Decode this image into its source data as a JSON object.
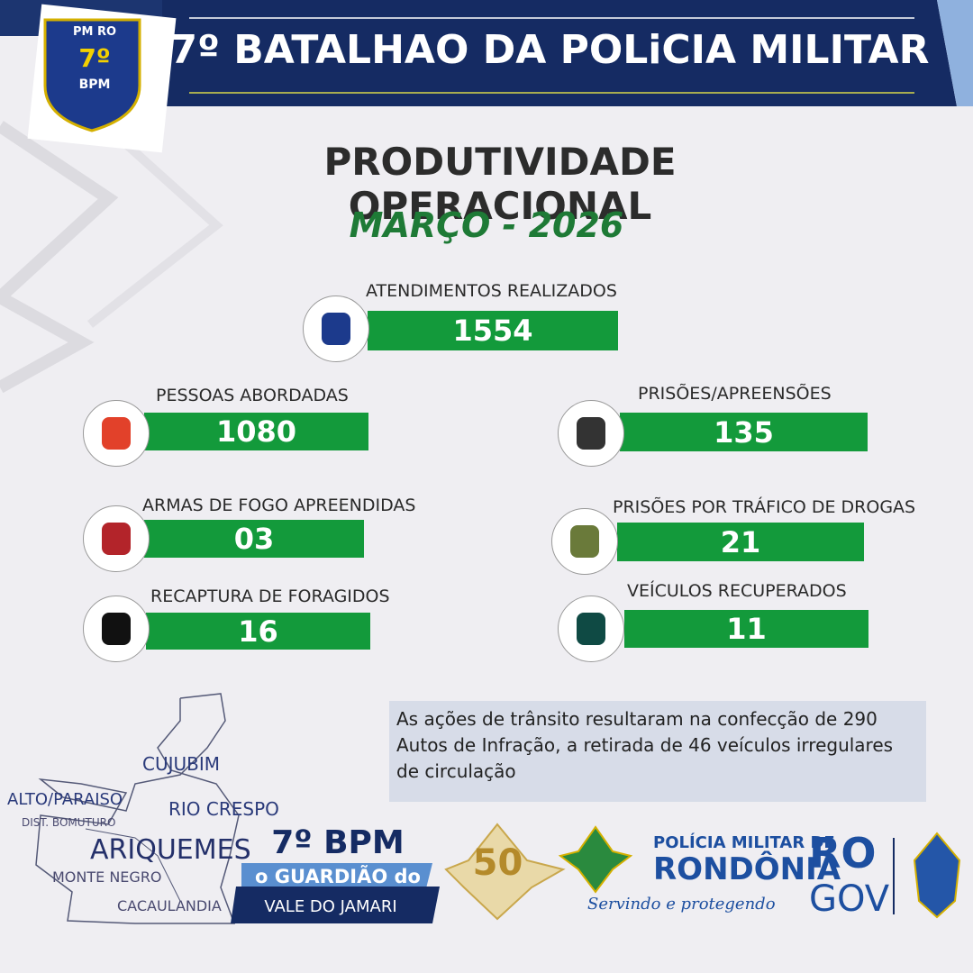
{
  "header": {
    "title": "7º BATALHAO DA POLiCIA MILITAR",
    "badge_top": "PM RO",
    "badge_number": "7º",
    "badge_bottom": "BPM"
  },
  "subtitle": "PRODUTIVIDADE OPERACIONAL",
  "period": "MARÇO - 2026",
  "stats": [
    {
      "label": "ATENDIMENTOS REALIZADOS",
      "value": "1554"
    },
    {
      "label": "PESSOAS ABORDADAS",
      "value": "1080"
    },
    {
      "label": "PRISÕES/APREENSÕES",
      "value": "135"
    },
    {
      "label": "ARMAS DE FOGO APREENDIDAS",
      "value": "03"
    },
    {
      "label": "PRISÕES POR TRÁFICO DE DROGAS",
      "value": "21"
    },
    {
      "label": "RECAPTURA DE FORAGIDOS",
      "value": "16"
    },
    {
      "label": "VEÍCULOS RECUPERADOS",
      "value": "11"
    }
  ],
  "note": "As ações de trânsito resultaram na confecção de 290 Autos de Infração, a retirada de 46 veículos irregulares de circulação",
  "map": {
    "labels": [
      "CUJUBIM",
      "ALTO/PARAISO",
      "DIST. BOMUTURO",
      "RIO CRESPO",
      "ARIQUEMES",
      "MONTE NEGRO",
      "CACAULANDIA"
    ]
  },
  "footer": {
    "unit": "7º BPM",
    "motto_1": "o GUARDIÃO do",
    "motto_2": "VALE DO JAMARI",
    "anniversary": "50",
    "pm_line1": "POLÍCIA MILITAR DE",
    "pm_line2": "RONDÔNIA",
    "slogan": "Servindo e protegendo",
    "gov_1": "RO",
    "gov_2": "GOV"
  }
}
